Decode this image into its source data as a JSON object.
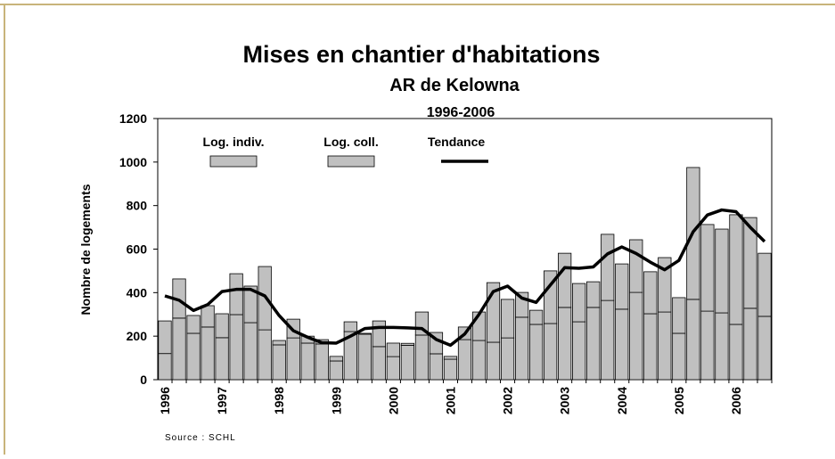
{
  "chart_data": {
    "type": "bar",
    "title": "Mises en chantier d'habitations",
    "subtitle": "AR de Kelowna",
    "period": "1996-2006",
    "y_label": "Nombre de logements",
    "source": "Source : SCHL",
    "stacked": true,
    "categories": [
      "1996",
      null,
      null,
      null,
      "1997",
      null,
      null,
      null,
      "1998",
      null,
      null,
      null,
      "1999",
      null,
      null,
      null,
      "2000",
      null,
      null,
      null,
      "2001",
      null,
      null,
      null,
      "2002",
      null,
      null,
      null,
      "2003",
      null,
      null,
      null,
      "2004",
      null,
      null,
      null,
      "2005",
      null,
      null,
      null,
      "2006",
      null,
      null
    ],
    "series": [
      {
        "name": "Log. indiv.",
        "color": "#c0c0c0",
        "values": [
          120,
          283,
          213,
          242,
          193,
          299,
          262,
          229,
          160,
          192,
          168,
          164,
          86,
          221,
          209,
          152,
          106,
          158,
          205,
          119,
          94,
          184,
          180,
          172,
          192,
          287,
          254,
          258,
          332,
          266,
          332,
          364,
          324,
          401,
          303,
          311,
          213,
          369,
          315,
          307,
          254,
          328,
          291
        ]
      },
      {
        "name": "Log. coll.",
        "color": "#c0c0c0",
        "values": [
          150,
          180,
          82,
          98,
          110,
          188,
          168,
          291,
          20,
          86,
          32,
          20,
          21,
          45,
          4,
          118,
          62,
          9,
          106,
          98,
          13,
          58,
          131,
          274,
          177,
          114,
          65,
          242,
          249,
          176,
          118,
          304,
          208,
          242,
          193,
          250,
          164,
          606,
          398,
          385,
          504,
          417,
          290
        ]
      },
      {
        "name": "Tendance",
        "type": "line",
        "color": "#000000",
        "values": [
          385,
          365,
          318,
          345,
          405,
          415,
          415,
          385,
          295,
          225,
          195,
          170,
          168,
          200,
          235,
          240,
          240,
          238,
          235,
          185,
          158,
          210,
          300,
          405,
          430,
          375,
          355,
          435,
          515,
          512,
          518,
          578,
          610,
          580,
          540,
          505,
          548,
          680,
          757,
          780,
          772,
          700,
          635
        ]
      }
    ],
    "ylim": [
      0,
      1200
    ],
    "yticks": [
      0,
      200,
      400,
      600,
      800,
      1000,
      1200
    ],
    "grid": false
  }
}
